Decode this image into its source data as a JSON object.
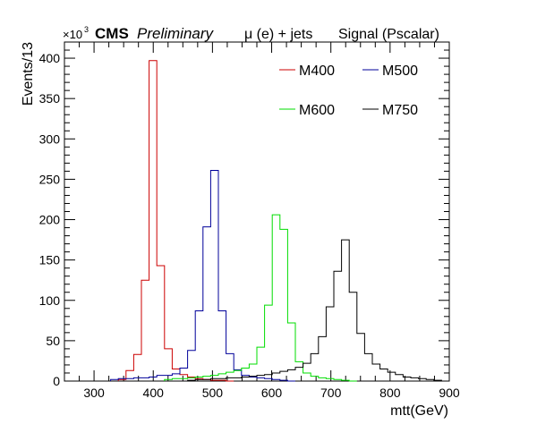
{
  "header": {
    "exponent_base": "×10",
    "exponent_power": "3",
    "experiment": "CMS",
    "status": "Preliminary",
    "channel": "μ (e) + jets",
    "sample": "Signal (Pscalar)"
  },
  "chart_data": {
    "type": "histogram",
    "xlabel": "mtt(GeV)",
    "ylabel": "Events/13",
    "xlim": [
      250,
      900
    ],
    "ylim": [
      0,
      420
    ],
    "y_scale_note": "×10^3",
    "x_ticks": [
      300,
      400,
      500,
      600,
      700,
      800,
      900
    ],
    "y_ticks": [
      0,
      50,
      100,
      150,
      200,
      250,
      300,
      350,
      400
    ],
    "bin_width": 13,
    "bin_start": 250,
    "legend_position": "top-right",
    "series": [
      {
        "name": "M400",
        "color": "#cc0000",
        "bin_lo": 341,
        "values": [
          2,
          13,
          33,
          125,
          397,
          143,
          40,
          15,
          8,
          5,
          3,
          2,
          1,
          1,
          0
        ]
      },
      {
        "name": "M500",
        "color": "#00009a",
        "bin_lo": 328,
        "values": [
          2,
          3,
          3,
          4,
          4,
          5,
          7,
          7,
          9,
          16,
          38,
          87,
          191,
          261,
          87,
          34,
          14,
          7,
          5,
          4,
          3,
          2,
          1,
          0
        ]
      },
      {
        "name": "M600",
        "color": "#00dd00",
        "bin_lo": 419,
        "values": [
          2,
          3,
          3,
          4,
          5,
          6,
          7,
          9,
          11,
          13,
          16,
          21,
          42,
          94,
          206,
          188,
          72,
          24,
          10,
          6,
          4,
          3,
          2,
          1,
          0
        ]
      },
      {
        "name": "M750",
        "color": "#000000",
        "bin_lo": 458,
        "values": [
          1,
          2,
          2,
          3,
          3,
          4,
          4,
          5,
          6,
          7,
          8,
          10,
          12,
          14,
          17,
          22,
          34,
          55,
          92,
          136,
          175,
          110,
          59,
          34,
          21,
          15,
          11,
          8,
          5,
          4,
          3,
          2,
          1,
          0
        ]
      }
    ]
  }
}
